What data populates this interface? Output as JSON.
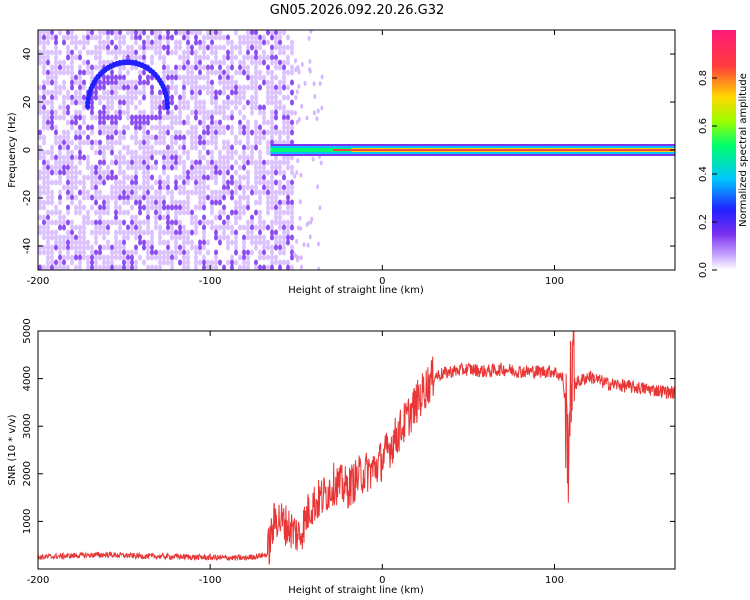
{
  "title": "GN05.2026.092.20.26.G32",
  "colors": {
    "snr_line": "#e83535",
    "frame": "#000000",
    "colormap": [
      "#ffffff",
      "#d6b8ff",
      "#7a30f0",
      "#2020ff",
      "#00c8ff",
      "#00ff6a",
      "#9cff00",
      "#ffd800",
      "#ff3c3c",
      "#ff2070"
    ]
  },
  "chart_data": [
    {
      "type": "heatmap",
      "name": "spectrogram",
      "xlabel": "Height of straight line (km)",
      "ylabel": "Frequency (Hz)",
      "xlim": [
        -200,
        170
      ],
      "ylim": [
        -50,
        50
      ],
      "x_ticks": [
        -200,
        -100,
        0,
        100
      ],
      "y_ticks": [
        -40,
        -20,
        0,
        20,
        40
      ],
      "colorbar": {
        "label": "Normalized spectral amplitude",
        "range": [
          0,
          1
        ],
        "ticks": [
          "0.0",
          "0.2",
          "0.4",
          "0.6",
          "0.8"
        ]
      },
      "noise_region_km": [
        -200,
        -52
      ],
      "signal_line_freq_hz": 0,
      "signal_region_km": [
        -65,
        170
      ],
      "noise_arc_center_km": -148,
      "noise_arc_center_hz": 22
    },
    {
      "type": "line",
      "name": "snr",
      "xlabel": "Height of straight line (km)",
      "ylabel": "SNR (10 * v/v)",
      "xlim": [
        -200,
        170
      ],
      "ylim": [
        0,
        5000
      ],
      "x_ticks": [
        -200,
        -100,
        0,
        100
      ],
      "y_ticks": [
        1000,
        2000,
        3000,
        4000,
        5000
      ],
      "series": [
        {
          "name": "SNR",
          "x": [
            -200,
            -180,
            -160,
            -140,
            -120,
            -100,
            -80,
            -67,
            -62,
            -55,
            -48,
            -42,
            -35,
            -28,
            -20,
            -12,
            -5,
            0,
            5,
            10,
            15,
            20,
            25,
            30,
            40,
            50,
            60,
            70,
            80,
            90,
            100,
            105,
            108,
            110,
            112,
            115,
            120,
            130,
            140,
            150,
            160,
            170
          ],
          "y": [
            250,
            280,
            300,
            270,
            260,
            240,
            230,
            300,
            1100,
            900,
            700,
            1300,
            1500,
            1800,
            1700,
            2000,
            2100,
            2300,
            2600,
            2900,
            3200,
            3500,
            3800,
            4050,
            4150,
            4200,
            4150,
            4200,
            4150,
            4150,
            4150,
            4000,
            2500,
            4300,
            3900,
            3950,
            4050,
            3900,
            3850,
            3800,
            3750,
            3700
          ]
        }
      ]
    }
  ]
}
